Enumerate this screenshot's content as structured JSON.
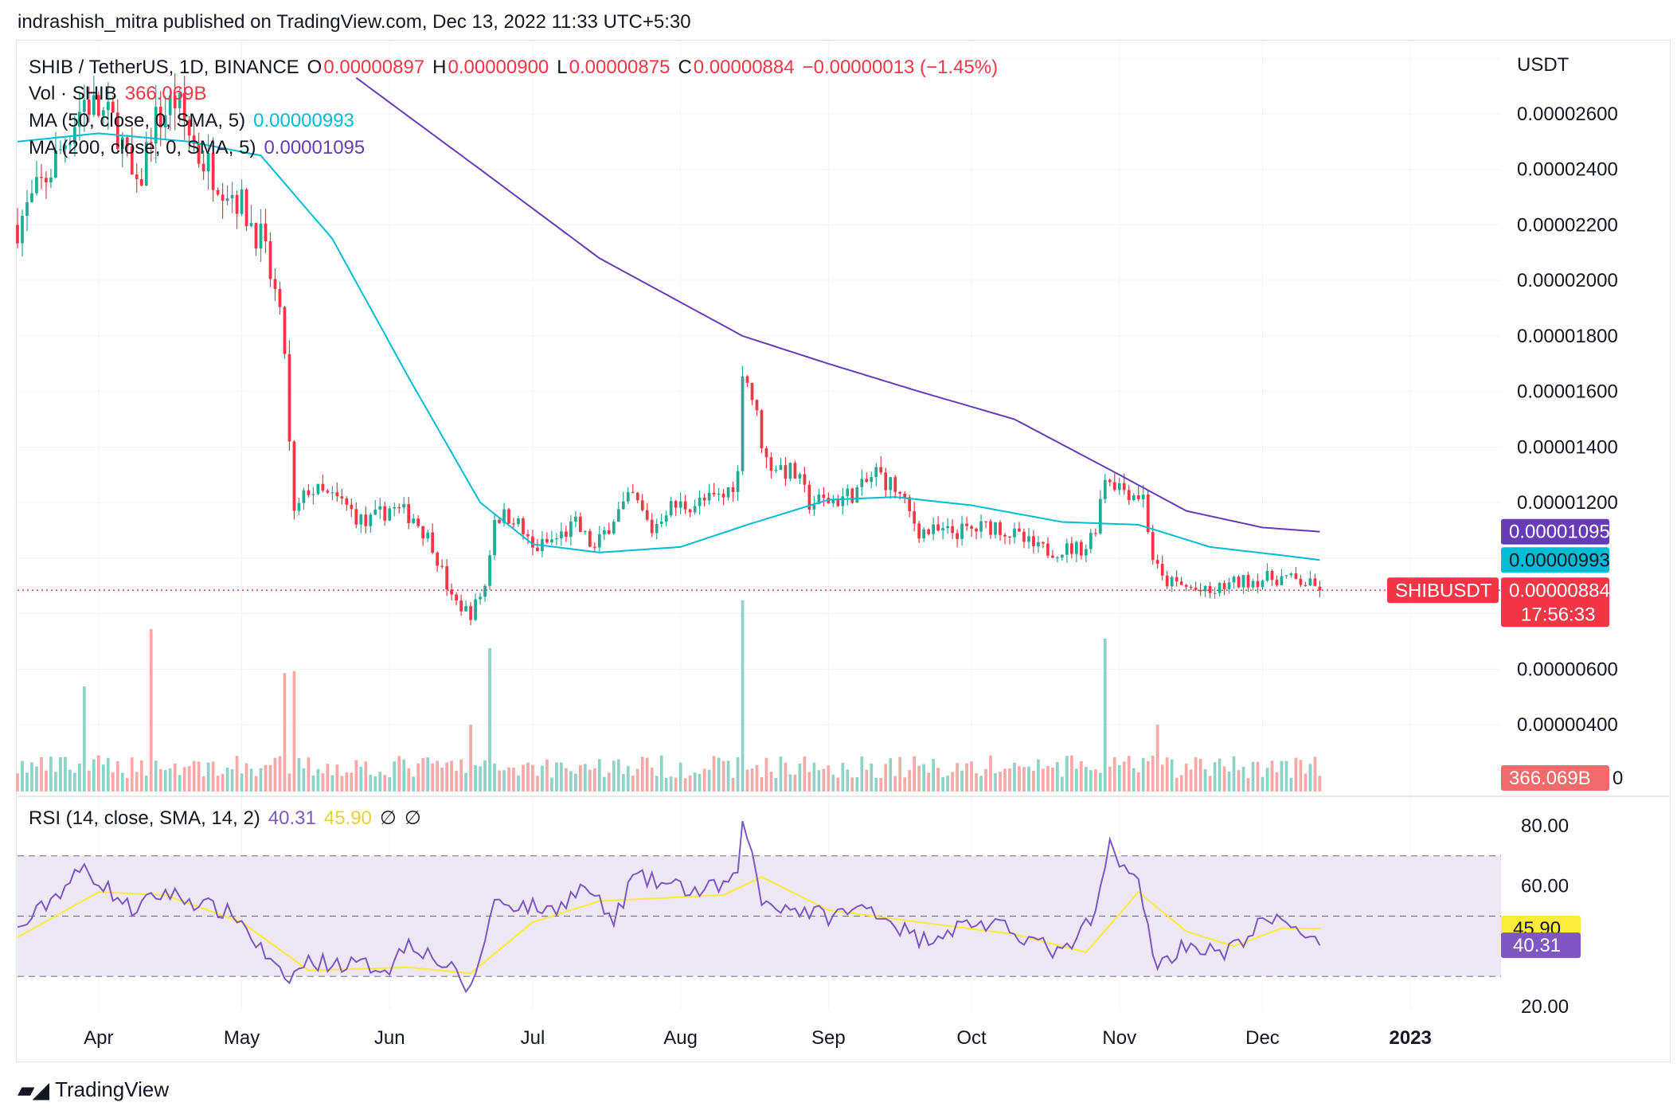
{
  "header": {
    "published": "indrashish_mitra published on TradingView.com, Dec 13, 2022 11:33 UTC+5:30"
  },
  "legend": {
    "symbol": "SHIB / TetherUS, 1D, BINANCE",
    "o_label": "O",
    "o_value": "0.00000897",
    "h_label": "H",
    "h_value": "0.00000900",
    "l_label": "L",
    "l_value": "0.00000875",
    "c_label": "C",
    "c_value": "0.00000884",
    "change": "−0.00000013 (−1.45%)",
    "vol_label": "Vol · SHIB",
    "vol_value": "366.069B",
    "ma50_label": "MA (50, close, 0, SMA, 5)",
    "ma50_value": "0.00000993",
    "ma200_label": "MA (200, close, 0, SMA, 5)",
    "ma200_value": "0.00001095"
  },
  "rsi_legend": {
    "label": "RSI (14, close, SMA, 14, 2)",
    "rsi_value": "40.31",
    "sma_value": "45.90",
    "na1": "∅",
    "na2": "∅"
  },
  "currency": "USDT",
  "price_tags": {
    "ma200": "0.00001095",
    "ma50": "0.00000993",
    "last": "0.00000884",
    "countdown": "17:56:33",
    "symbol_tag": "SHIBUSDT",
    "vol": "366.069B",
    "vol_zero": "0",
    "rsi_sma": "45.90",
    "rsi": "40.31"
  },
  "colors": {
    "up": "#22ab94",
    "down": "#f23645",
    "ma50": "#00bcd4",
    "ma200": "#673ab7",
    "rsi": "#7e57c2",
    "rsi_sma": "#ffeb3b",
    "rsi_band": "#ede7f6",
    "vol_up": "#8fd3c8",
    "vol_down": "#f7a9a7"
  },
  "footer": {
    "brand": "TradingView"
  },
  "chart_data": {
    "type": "candlestick",
    "x_ticks": [
      "Apr",
      "May",
      "Jun",
      "Jul",
      "Aug",
      "Sep",
      "Oct",
      "Nov",
      "Dec",
      "2023"
    ],
    "y_ticks": [
      "0.00002600",
      "0.00002400",
      "0.00002200",
      "0.00002000",
      "0.00001800",
      "0.00001600",
      "0.00001400",
      "0.00001200",
      "0.00000600",
      "0.00000400"
    ],
    "y_tick_values": [
      2.6e-05,
      2.4e-05,
      2.2e-05,
      2e-05,
      1.8e-05,
      1.6e-05,
      1.4e-05,
      1.2e-05,
      6e-06,
      4e-06
    ],
    "price_range": [
      7.2e-06,
      2.73e-05
    ],
    "close_anchors": [
      [
        "2022-03-15",
        2.2e-05
      ],
      [
        "2022-03-22",
        2.4e-05
      ],
      [
        "2022-03-29",
        2.65e-05
      ],
      [
        "2022-04-05",
        2.55e-05
      ],
      [
        "2022-04-09",
        2.3e-05
      ],
      [
        "2022-04-12",
        2.55e-05
      ],
      [
        "2022-04-17",
        2.65e-05
      ],
      [
        "2022-04-22",
        2.45e-05
      ],
      [
        "2022-04-30",
        2.3e-05
      ],
      [
        "2022-05-05",
        2.15e-05
      ],
      [
        "2022-05-08",
        1.95e-05
      ],
      [
        "2022-05-10",
        1.75e-05
      ],
      [
        "2022-05-11",
        1.4e-05
      ],
      [
        "2022-05-12",
        1.15e-05
      ],
      [
        "2022-05-15",
        1.25e-05
      ],
      [
        "2022-05-22",
        1.2e-05
      ],
      [
        "2022-05-27",
        1.12e-05
      ],
      [
        "2022-06-01",
        1.18e-05
      ],
      [
        "2022-06-06",
        1.15e-05
      ],
      [
        "2022-06-10",
        1.05e-05
      ],
      [
        "2022-06-14",
        8.5e-06
      ],
      [
        "2022-06-18",
        8e-06
      ],
      [
        "2022-06-21",
        9e-06
      ],
      [
        "2022-06-23",
        1.15e-05
      ],
      [
        "2022-06-27",
        1.15e-05
      ],
      [
        "2022-07-01",
        1.03e-05
      ],
      [
        "2022-07-06",
        1.07e-05
      ],
      [
        "2022-07-10",
        1.12e-05
      ],
      [
        "2022-07-14",
        1.03e-05
      ],
      [
        "2022-07-18",
        1.15e-05
      ],
      [
        "2022-07-22",
        1.22e-05
      ],
      [
        "2022-07-26",
        1.1e-05
      ],
      [
        "2022-07-29",
        1.18e-05
      ],
      [
        "2022-08-05",
        1.2e-05
      ],
      [
        "2022-08-10",
        1.22e-05
      ],
      [
        "2022-08-13",
        1.3e-05
      ],
      [
        "2022-08-14",
        1.7e-05
      ],
      [
        "2022-08-16",
        1.58e-05
      ],
      [
        "2022-08-19",
        1.35e-05
      ],
      [
        "2022-08-25",
        1.3e-05
      ],
      [
        "2022-08-28",
        1.2e-05
      ],
      [
        "2022-09-03",
        1.21e-05
      ],
      [
        "2022-09-08",
        1.25e-05
      ],
      [
        "2022-09-11",
        1.31e-05
      ],
      [
        "2022-09-15",
        1.25e-05
      ],
      [
        "2022-09-20",
        1.1e-05
      ],
      [
        "2022-09-25",
        1.09e-05
      ],
      [
        "2022-10-01",
        1.1e-05
      ],
      [
        "2022-10-06",
        1.12e-05
      ],
      [
        "2022-10-10",
        1.08e-05
      ],
      [
        "2022-10-15",
        1.03e-05
      ],
      [
        "2022-10-20",
        1.03e-05
      ],
      [
        "2022-10-25",
        1.04e-05
      ],
      [
        "2022-10-27",
        1.12e-05
      ],
      [
        "2022-10-29",
        1.3e-05
      ],
      [
        "2022-11-02",
        1.25e-05
      ],
      [
        "2022-11-06",
        1.22e-05
      ],
      [
        "2022-11-08",
        1e-05
      ],
      [
        "2022-11-10",
        9.2e-06
      ],
      [
        "2022-11-14",
        9e-06
      ],
      [
        "2022-11-20",
        8.7e-06
      ],
      [
        "2022-11-23",
        9e-06
      ],
      [
        "2022-11-28",
        9.2e-06
      ],
      [
        "2022-12-05",
        9.3e-06
      ],
      [
        "2022-12-10",
        9.1e-06
      ],
      [
        "2022-12-13",
        8.84e-06
      ]
    ],
    "ma50_anchors": [
      [
        "2022-03-15",
        2.5e-05
      ],
      [
        "2022-04-01",
        2.53e-05
      ],
      [
        "2022-04-20",
        2.5e-05
      ],
      [
        "2022-05-05",
        2.45e-05
      ],
      [
        "2022-05-20",
        2.15e-05
      ],
      [
        "2022-06-05",
        1.65e-05
      ],
      [
        "2022-06-20",
        1.2e-05
      ],
      [
        "2022-07-01",
        1.05e-05
      ],
      [
        "2022-07-15",
        1.02e-05
      ],
      [
        "2022-08-01",
        1.04e-05
      ],
      [
        "2022-08-15",
        1.12e-05
      ],
      [
        "2022-09-01",
        1.21e-05
      ],
      [
        "2022-09-15",
        1.22e-05
      ],
      [
        "2022-10-01",
        1.19e-05
      ],
      [
        "2022-10-20",
        1.13e-05
      ],
      [
        "2022-11-05",
        1.12e-05
      ],
      [
        "2022-11-20",
        1.04e-05
      ],
      [
        "2022-12-05",
        1.01e-05
      ],
      [
        "2022-12-13",
        9.93e-06
      ]
    ],
    "ma200_anchors": [
      [
        "2022-05-25",
        2.73e-05
      ],
      [
        "2022-06-20",
        2.4e-05
      ],
      [
        "2022-07-15",
        2.08e-05
      ],
      [
        "2022-08-14",
        1.8e-05
      ],
      [
        "2022-09-01",
        1.7e-05
      ],
      [
        "2022-09-20",
        1.6e-05
      ],
      [
        "2022-10-10",
        1.5e-05
      ],
      [
        "2022-11-01",
        1.3e-05
      ],
      [
        "2022-11-15",
        1.17e-05
      ],
      [
        "2022-12-01",
        1.11e-05
      ],
      [
        "2022-12-13",
        1.095e-05
      ]
    ],
    "volume_spikes": [
      [
        "2022-03-29",
        0.55
      ],
      [
        "2022-04-12",
        0.85
      ],
      [
        "2022-05-10",
        0.62
      ],
      [
        "2022-05-12",
        0.63
      ],
      [
        "2022-06-18",
        0.35
      ],
      [
        "2022-06-22",
        0.75
      ],
      [
        "2022-08-14",
        1.0
      ],
      [
        "2022-10-29",
        0.8
      ],
      [
        "2022-11-09",
        0.35
      ]
    ],
    "rsi_anchors": [
      [
        "2022-03-15",
        45
      ],
      [
        "2022-03-29",
        66
      ],
      [
        "2022-04-08",
        52
      ],
      [
        "2022-04-15",
        58
      ],
      [
        "2022-04-30",
        50
      ],
      [
        "2022-05-10",
        28
      ],
      [
        "2022-05-15",
        35
      ],
      [
        "2022-06-01",
        33
      ],
      [
        "2022-06-05",
        42
      ],
      [
        "2022-06-14",
        32
      ],
      [
        "2022-06-18",
        25
      ],
      [
        "2022-06-23",
        55
      ],
      [
        "2022-07-05",
        52
      ],
      [
        "2022-07-12",
        60
      ],
      [
        "2022-07-18",
        48
      ],
      [
        "2022-07-22",
        63
      ],
      [
        "2022-08-05",
        58
      ],
      [
        "2022-08-13",
        62
      ],
      [
        "2022-08-14",
        84
      ],
      [
        "2022-08-18",
        55
      ],
      [
        "2022-09-01",
        50
      ],
      [
        "2022-09-10",
        53
      ],
      [
        "2022-09-20",
        42
      ],
      [
        "2022-10-01",
        48
      ],
      [
        "2022-10-10",
        45
      ],
      [
        "2022-10-20",
        37
      ],
      [
        "2022-10-27",
        50
      ],
      [
        "2022-10-30",
        74
      ],
      [
        "2022-11-05",
        60
      ],
      [
        "2022-11-09",
        33
      ],
      [
        "2022-11-15",
        41
      ],
      [
        "2022-11-23",
        37
      ],
      [
        "2022-12-01",
        48
      ],
      [
        "2022-12-07",
        48
      ],
      [
        "2022-12-13",
        40.31
      ]
    ],
    "rsi_sma_anchors": [
      [
        "2022-03-15",
        43
      ],
      [
        "2022-04-01",
        58
      ],
      [
        "2022-04-15",
        57
      ],
      [
        "2022-05-01",
        48
      ],
      [
        "2022-05-15",
        32
      ],
      [
        "2022-06-05",
        33
      ],
      [
        "2022-06-18",
        31
      ],
      [
        "2022-07-01",
        48
      ],
      [
        "2022-07-15",
        55
      ],
      [
        "2022-08-10",
        57
      ],
      [
        "2022-08-18",
        63
      ],
      [
        "2022-09-01",
        52
      ],
      [
        "2022-09-20",
        48
      ],
      [
        "2022-10-10",
        44
      ],
      [
        "2022-10-25",
        38
      ],
      [
        "2022-11-05",
        58
      ],
      [
        "2022-11-15",
        45
      ],
      [
        "2022-11-25",
        40
      ],
      [
        "2022-12-05",
        46
      ],
      [
        "2022-12-13",
        45.9
      ]
    ],
    "rsi_y_ticks": [
      "80.00",
      "60.00",
      "20.00"
    ],
    "rsi_y_tick_values": [
      80,
      60,
      20
    ],
    "rsi_bands": [
      70,
      50,
      30
    ],
    "rsi_range": [
      17,
      86
    ],
    "x_range": [
      "2022-03-15",
      "2023-01-20"
    ],
    "last_price": 8.84e-06,
    "ma50_last": 9.93e-06,
    "ma200_last": 1.095e-05
  }
}
